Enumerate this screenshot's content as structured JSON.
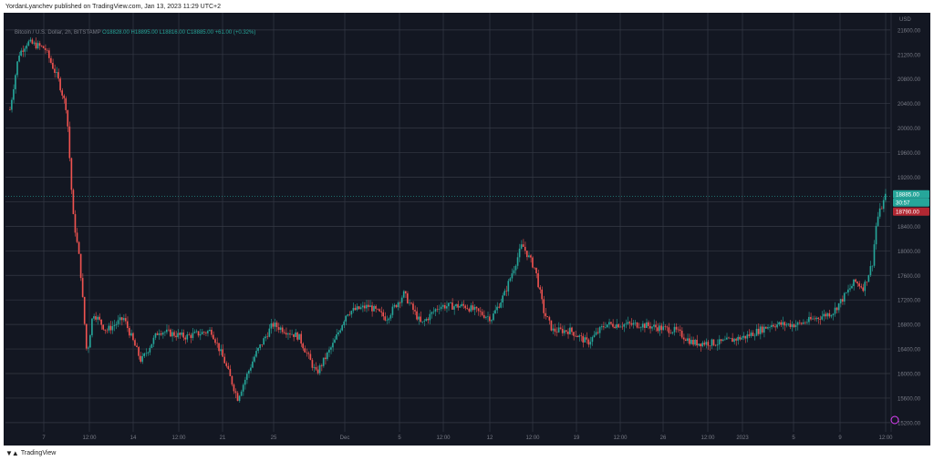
{
  "header": {
    "credit": "YordanLyanchev published on TradingView.com, Jan 13, 2023 11:29 UTC+2"
  },
  "legend": {
    "symbol": "Bitcoin / U.S. Dollar, 2h, BITSTAMP",
    "open": "O18828.00",
    "high": "H18895.00",
    "low": "L18816.00",
    "close": "C18885.00",
    "change": "+61.00 (+0.32%)"
  },
  "footer": {
    "brand": "TradingView"
  },
  "chart_data": {
    "type": "candlestick",
    "currency_label": "USD",
    "y_ticks": [
      15200,
      15600,
      16000,
      16400,
      16800,
      17200,
      17600,
      18000,
      18400,
      18800,
      19200,
      19600,
      20000,
      20400,
      20800,
      21200,
      21600
    ],
    "y_tick_labels": [
      "15200.00",
      "15600.00",
      "16000.00",
      "16400.00",
      "16800.00",
      "17200.00",
      "17600.00",
      "18000.00",
      "18400.00",
      "18800.00",
      "19200.00",
      "19600.00",
      "20000.00",
      "20400.00",
      "20800.00",
      "21200.00",
      "21600.00"
    ],
    "x_tick_labels": [
      "7",
      "12:00",
      "14",
      "12:00",
      "21",
      "25",
      "Dec",
      "5",
      "12:00",
      "12",
      "12:00",
      "19",
      "12:00",
      "26",
      "12:00",
      "2023",
      "5",
      "9",
      "12:00"
    ],
    "ylim": [
      15050,
      21880
    ],
    "last_price_label": "18885.00",
    "countdown_label": "30:57",
    "prev_price_label": "18790.00",
    "up_color": "#26a69a",
    "down_color": "#ef5350",
    "price_path": [
      {
        "t": 0.0,
        "p": 20300
      },
      {
        "t": 0.01,
        "p": 21200
      },
      {
        "t": 0.02,
        "p": 21400
      },
      {
        "t": 0.04,
        "p": 21300
      },
      {
        "t": 0.055,
        "p": 20800
      },
      {
        "t": 0.065,
        "p": 20300
      },
      {
        "t": 0.072,
        "p": 18600
      },
      {
        "t": 0.08,
        "p": 17800
      },
      {
        "t": 0.088,
        "p": 16300
      },
      {
        "t": 0.095,
        "p": 17000
      },
      {
        "t": 0.11,
        "p": 16700
      },
      {
        "t": 0.13,
        "p": 16900
      },
      {
        "t": 0.15,
        "p": 16200
      },
      {
        "t": 0.17,
        "p": 16700
      },
      {
        "t": 0.2,
        "p": 16600
      },
      {
        "t": 0.23,
        "p": 16700
      },
      {
        "t": 0.245,
        "p": 16200
      },
      {
        "t": 0.26,
        "p": 15600
      },
      {
        "t": 0.28,
        "p": 16300
      },
      {
        "t": 0.3,
        "p": 16800
      },
      {
        "t": 0.33,
        "p": 16600
      },
      {
        "t": 0.35,
        "p": 16000
      },
      {
        "t": 0.37,
        "p": 16500
      },
      {
        "t": 0.385,
        "p": 17000
      },
      {
        "t": 0.41,
        "p": 17100
      },
      {
        "t": 0.43,
        "p": 16900
      },
      {
        "t": 0.45,
        "p": 17300
      },
      {
        "t": 0.47,
        "p": 16800
      },
      {
        "t": 0.49,
        "p": 17100
      },
      {
        "t": 0.52,
        "p": 17100
      },
      {
        "t": 0.55,
        "p": 16900
      },
      {
        "t": 0.565,
        "p": 17300
      },
      {
        "t": 0.575,
        "p": 17700
      },
      {
        "t": 0.585,
        "p": 18100
      },
      {
        "t": 0.6,
        "p": 17700
      },
      {
        "t": 0.61,
        "p": 17000
      },
      {
        "t": 0.62,
        "p": 16700
      },
      {
        "t": 0.64,
        "p": 16700
      },
      {
        "t": 0.66,
        "p": 16500
      },
      {
        "t": 0.68,
        "p": 16800
      },
      {
        "t": 0.72,
        "p": 16800
      },
      {
        "t": 0.76,
        "p": 16700
      },
      {
        "t": 0.78,
        "p": 16500
      },
      {
        "t": 0.81,
        "p": 16500
      },
      {
        "t": 0.84,
        "p": 16600
      },
      {
        "t": 0.87,
        "p": 16800
      },
      {
        "t": 0.9,
        "p": 16800
      },
      {
        "t": 0.92,
        "p": 16900
      },
      {
        "t": 0.94,
        "p": 17000
      },
      {
        "t": 0.955,
        "p": 17300
      },
      {
        "t": 0.965,
        "p": 17500
      },
      {
        "t": 0.975,
        "p": 17400
      },
      {
        "t": 0.985,
        "p": 17800
      },
      {
        "t": 0.99,
        "p": 18500
      },
      {
        "t": 1.0,
        "p": 18885
      }
    ]
  }
}
